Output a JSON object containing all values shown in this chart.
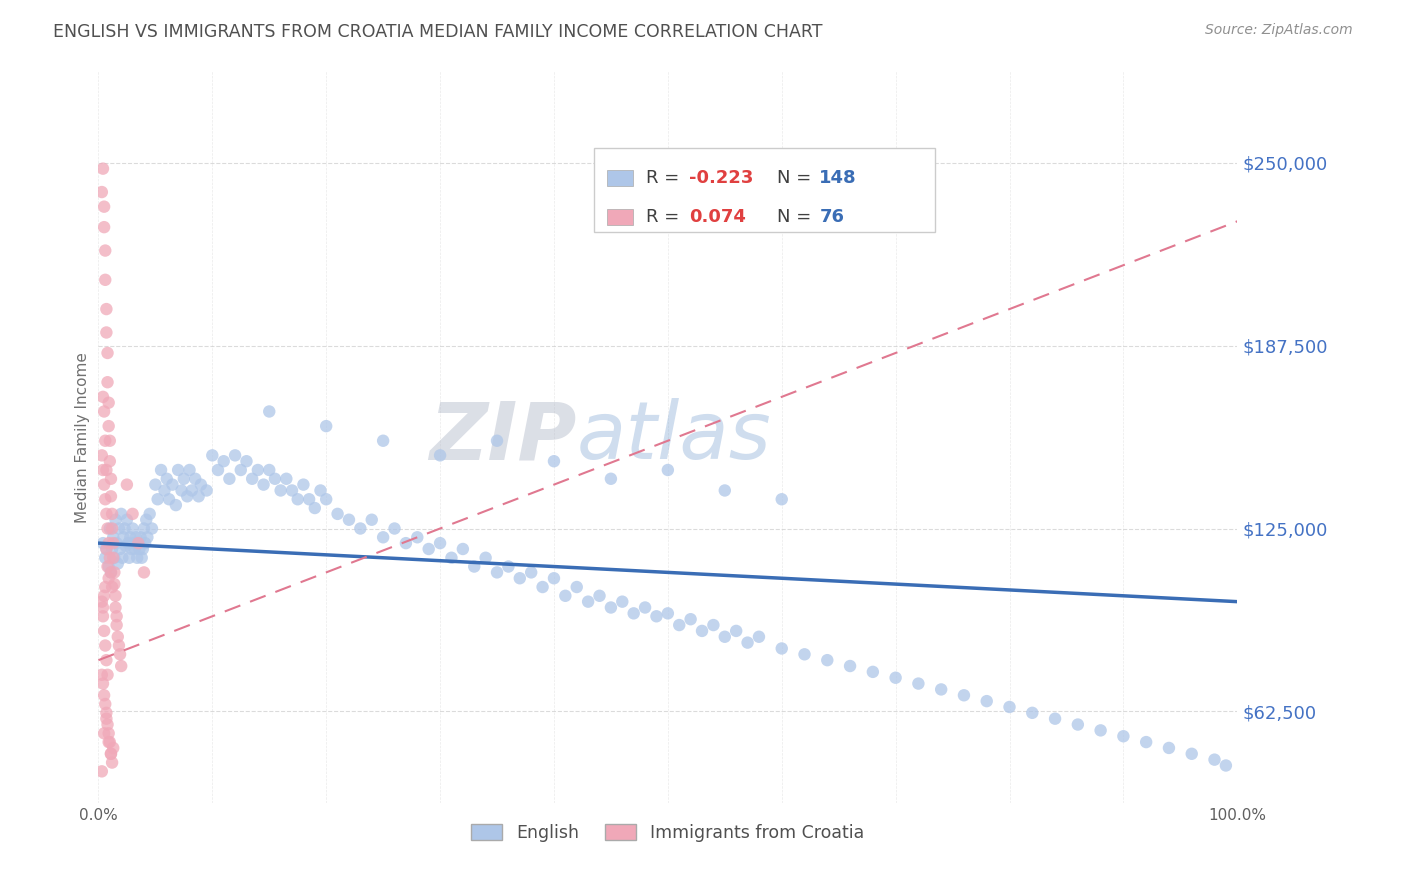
{
  "title": "ENGLISH VS IMMIGRANTS FROM CROATIA MEDIAN FAMILY INCOME CORRELATION CHART",
  "source_text": "Source: ZipAtlas.com",
  "ylabel": "Median Family Income",
  "watermark_zip": "ZIP",
  "watermark_atlas": "atlas",
  "xlim": [
    0.0,
    1.0
  ],
  "ylim": [
    31250,
    281250
  ],
  "yticks": [
    62500,
    125000,
    187500,
    250000
  ],
  "ytick_labels": [
    "$62,500",
    "$125,000",
    "$187,500",
    "$250,000"
  ],
  "xticks": [
    0.0,
    0.1,
    0.2,
    0.3,
    0.4,
    0.5,
    0.6,
    0.7,
    0.8,
    0.9,
    1.0
  ],
  "xtick_labels": [
    "0.0%",
    "",
    "",
    "",
    "",
    "",
    "",
    "",
    "",
    "",
    "100.0%"
  ],
  "series": [
    {
      "name": "English",
      "color": "#aec6e8",
      "R": -0.223,
      "N": 148,
      "trend_color": "#3a6db5",
      "trend_style": "solid"
    },
    {
      "name": "Immigrants from Croatia",
      "color": "#f0a8b8",
      "R": 0.074,
      "N": 76,
      "trend_color": "#e07890",
      "trend_style": "dashed"
    }
  ],
  "legend_R_color": "#e04040",
  "legend_N_color": "#3a6db5",
  "background_color": "#ffffff",
  "grid_color": "#cccccc",
  "title_color": "#505050",
  "english_x": [
    0.004,
    0.006,
    0.007,
    0.009,
    0.01,
    0.011,
    0.012,
    0.013,
    0.014,
    0.015,
    0.016,
    0.017,
    0.018,
    0.019,
    0.02,
    0.021,
    0.022,
    0.023,
    0.024,
    0.025,
    0.026,
    0.027,
    0.028,
    0.029,
    0.03,
    0.031,
    0.032,
    0.033,
    0.034,
    0.035,
    0.036,
    0.037,
    0.038,
    0.039,
    0.04,
    0.041,
    0.042,
    0.043,
    0.045,
    0.047,
    0.05,
    0.052,
    0.055,
    0.058,
    0.06,
    0.062,
    0.065,
    0.068,
    0.07,
    0.073,
    0.075,
    0.078,
    0.08,
    0.082,
    0.085,
    0.088,
    0.09,
    0.095,
    0.1,
    0.105,
    0.11,
    0.115,
    0.12,
    0.125,
    0.13,
    0.135,
    0.14,
    0.145,
    0.15,
    0.155,
    0.16,
    0.165,
    0.17,
    0.175,
    0.18,
    0.185,
    0.19,
    0.195,
    0.2,
    0.21,
    0.22,
    0.23,
    0.24,
    0.25,
    0.26,
    0.27,
    0.28,
    0.29,
    0.3,
    0.31,
    0.32,
    0.33,
    0.34,
    0.35,
    0.36,
    0.37,
    0.38,
    0.39,
    0.4,
    0.41,
    0.42,
    0.43,
    0.44,
    0.45,
    0.46,
    0.47,
    0.48,
    0.49,
    0.5,
    0.51,
    0.52,
    0.53,
    0.54,
    0.55,
    0.56,
    0.57,
    0.58,
    0.6,
    0.62,
    0.64,
    0.66,
    0.68,
    0.7,
    0.72,
    0.74,
    0.76,
    0.78,
    0.8,
    0.82,
    0.84,
    0.86,
    0.88,
    0.9,
    0.92,
    0.94,
    0.96,
    0.98,
    0.99,
    0.15,
    0.2,
    0.25,
    0.3,
    0.35,
    0.4,
    0.45,
    0.5,
    0.55,
    0.6
  ],
  "english_y": [
    120000,
    115000,
    118000,
    112000,
    125000,
    110000,
    118000,
    122000,
    115000,
    128000,
    120000,
    113000,
    125000,
    118000,
    130000,
    115000,
    122000,
    125000,
    119000,
    128000,
    120000,
    115000,
    122000,
    118000,
    125000,
    120000,
    118000,
    122000,
    115000,
    120000,
    118000,
    122000,
    115000,
    118000,
    125000,
    120000,
    128000,
    122000,
    130000,
    125000,
    140000,
    135000,
    145000,
    138000,
    142000,
    135000,
    140000,
    133000,
    145000,
    138000,
    142000,
    136000,
    145000,
    138000,
    142000,
    136000,
    140000,
    138000,
    150000,
    145000,
    148000,
    142000,
    150000,
    145000,
    148000,
    142000,
    145000,
    140000,
    145000,
    142000,
    138000,
    142000,
    138000,
    135000,
    140000,
    135000,
    132000,
    138000,
    135000,
    130000,
    128000,
    125000,
    128000,
    122000,
    125000,
    120000,
    122000,
    118000,
    120000,
    115000,
    118000,
    112000,
    115000,
    110000,
    112000,
    108000,
    110000,
    105000,
    108000,
    102000,
    105000,
    100000,
    102000,
    98000,
    100000,
    96000,
    98000,
    95000,
    96000,
    92000,
    94000,
    90000,
    92000,
    88000,
    90000,
    86000,
    88000,
    84000,
    82000,
    80000,
    78000,
    76000,
    74000,
    72000,
    70000,
    68000,
    66000,
    64000,
    62000,
    60000,
    58000,
    56000,
    54000,
    52000,
    50000,
    48000,
    46000,
    44000,
    165000,
    160000,
    155000,
    150000,
    155000,
    148000,
    142000,
    145000,
    138000,
    135000
  ],
  "croatia_x": [
    0.003,
    0.004,
    0.005,
    0.005,
    0.006,
    0.006,
    0.007,
    0.007,
    0.008,
    0.008,
    0.009,
    0.009,
    0.01,
    0.01,
    0.011,
    0.011,
    0.012,
    0.012,
    0.013,
    0.013,
    0.014,
    0.014,
    0.015,
    0.015,
    0.016,
    0.016,
    0.017,
    0.018,
    0.019,
    0.02,
    0.003,
    0.004,
    0.005,
    0.006,
    0.007,
    0.008,
    0.009,
    0.01,
    0.011,
    0.012,
    0.003,
    0.004,
    0.005,
    0.006,
    0.007,
    0.008,
    0.009,
    0.01,
    0.011,
    0.012,
    0.003,
    0.004,
    0.005,
    0.006,
    0.007,
    0.008,
    0.004,
    0.005,
    0.006,
    0.007,
    0.025,
    0.03,
    0.035,
    0.04,
    0.007,
    0.008,
    0.009,
    0.006,
    0.005,
    0.004,
    0.003,
    0.005,
    0.007,
    0.009,
    0.011,
    0.013
  ],
  "croatia_y": [
    240000,
    248000,
    235000,
    228000,
    220000,
    210000,
    200000,
    192000,
    185000,
    175000,
    168000,
    160000,
    155000,
    148000,
    142000,
    136000,
    130000,
    125000,
    120000,
    115000,
    110000,
    106000,
    102000,
    98000,
    95000,
    92000,
    88000,
    85000,
    82000,
    78000,
    150000,
    145000,
    140000,
    135000,
    130000,
    125000,
    120000,
    115000,
    110000,
    105000,
    75000,
    72000,
    68000,
    65000,
    62000,
    58000,
    55000,
    52000,
    48000,
    45000,
    100000,
    95000,
    90000,
    85000,
    80000,
    75000,
    170000,
    165000,
    155000,
    145000,
    140000,
    130000,
    120000,
    110000,
    118000,
    112000,
    108000,
    105000,
    102000,
    98000,
    42000,
    55000,
    60000,
    52000,
    48000,
    50000
  ]
}
